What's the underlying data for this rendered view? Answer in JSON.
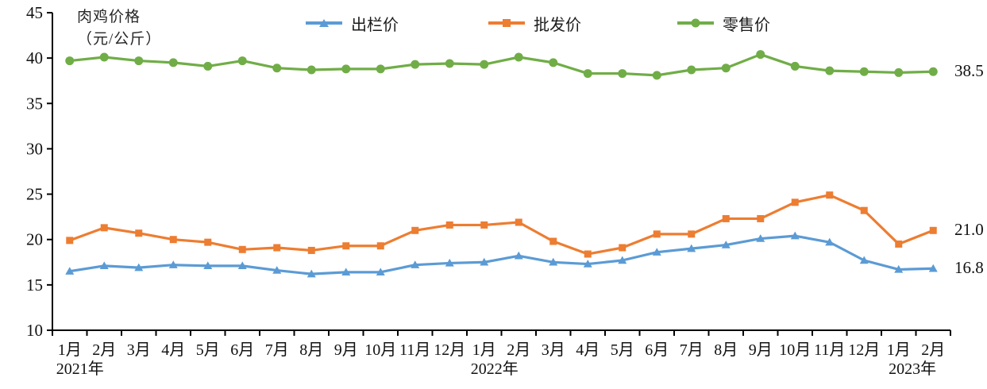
{
  "chart_data": {
    "type": "line",
    "title_lines": [
      "肉鸡价格",
      "（元/公斤）"
    ],
    "legend_position": "top",
    "grid": false,
    "y_axis": {
      "min": 10,
      "max": 45,
      "ticks": [
        45,
        40,
        35,
        30,
        25,
        20,
        15,
        10
      ]
    },
    "categories": [
      "1月",
      "2月",
      "3月",
      "4月",
      "5月",
      "6月",
      "7月",
      "8月",
      "9月",
      "10月",
      "11月",
      "12月",
      "1月",
      "2月",
      "3月",
      "4月",
      "5月",
      "6月",
      "7月",
      "8月",
      "9月",
      "10月",
      "11月",
      "12月",
      "1月",
      "2月"
    ],
    "year_labels": [
      {
        "text": "2021年",
        "month_index": 0.3
      },
      {
        "text": "2022年",
        "month_index": 12.3
      },
      {
        "text": "2023年",
        "month_index": 24.4
      }
    ],
    "series": [
      {
        "name": "出栏价",
        "color": "#5B9BD5",
        "marker": "triangle",
        "end_label": "16.8",
        "values": [
          16.5,
          17.1,
          16.9,
          17.2,
          17.1,
          17.1,
          16.6,
          16.2,
          16.4,
          16.4,
          17.2,
          17.4,
          17.5,
          18.2,
          17.5,
          17.3,
          17.7,
          18.6,
          19.0,
          19.4,
          20.1,
          20.4,
          19.7,
          17.7,
          16.7,
          16.8
        ]
      },
      {
        "name": "批发价",
        "color": "#ED7D31",
        "marker": "square",
        "end_label": "21.0",
        "values": [
          19.9,
          21.3,
          20.7,
          20.0,
          19.7,
          18.9,
          19.1,
          18.8,
          19.3,
          19.3,
          21.0,
          21.6,
          21.6,
          21.9,
          19.8,
          18.4,
          19.1,
          20.6,
          20.6,
          22.3,
          22.3,
          24.1,
          24.9,
          23.2,
          19.5,
          21.0
        ]
      },
      {
        "name": "零售价",
        "color": "#70AD47",
        "marker": "circle",
        "end_label": "38.5",
        "values": [
          39.7,
          40.1,
          39.7,
          39.5,
          39.1,
          39.7,
          38.9,
          38.7,
          38.8,
          38.8,
          39.3,
          39.4,
          39.3,
          40.1,
          39.5,
          38.3,
          38.3,
          38.1,
          38.7,
          38.9,
          40.4,
          39.1,
          38.6,
          38.5,
          38.4,
          38.5
        ]
      }
    ]
  }
}
